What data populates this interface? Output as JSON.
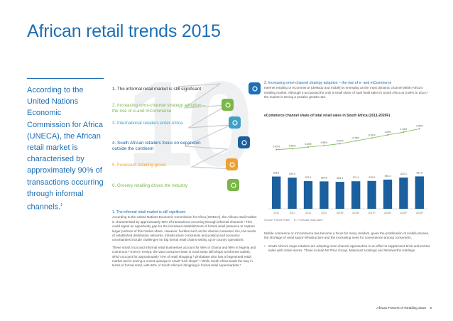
{
  "page": {
    "title": "African retail trends 2015",
    "footer": "African Powers of Retailing 2015",
    "page_number": "5"
  },
  "pull_quote": {
    "text": "According to the United Nations Economic Commission for Africa (UNECA), the African retail market is characterised by approximately 90% of transactions occurring through informal channels.",
    "sup": "1"
  },
  "trends": [
    {
      "label": "1. The informal retail market is still significant",
      "color": "#1d6fb5",
      "icon": "hand-money-icon"
    },
    {
      "label": "2. Increasing omni-channel strategy adoption – the rise of e-and mCommerce",
      "color": "#7ab648",
      "icon": "mobile-shop-icon"
    },
    {
      "label": "3. International retailers enter Africa",
      "color": "#3ea0c4",
      "icon": "globe-icon"
    },
    {
      "label": "4. South African retailers focus on expansion outside the continent",
      "color": "#1a5f9e",
      "icon": "search-africa-icon"
    },
    {
      "label": "5. Forecourt retailing grows",
      "color": "#f0a030",
      "icon": "fuel-icon"
    },
    {
      "label": "6. Grocery retailing drives the industry",
      "color": "#7ab648",
      "icon": "growth-bars-icon"
    }
  ],
  "left_body": {
    "heading": "1. The informal retail market is still significant",
    "paragraphs": [
      "According to the United Nations Economic Commission for Africa (UNECA), the African retail market is characterised by approximately 90% of transactions occurring through informal channels.¹ This could signal an opportunity gap for the increased establishment of formal retail presence to capture larger portions of this market share. However, hurdles such as the diverse consumer mix, low levels of established distribution networks, infrastructure constraints and political and economic uncertainties include challenges for big formal retail chains setting up in-country operations.",
      "These small, local and informal retail businesses account for 96% in Ghana and 98% in Nigeria and Cameroon.² Even in Kenya, the vast consumer base in rural areas still shops at informal outlets, which account for approximately 70% of retail shopping.³ Zimbabwe also has a fragmented retail market and is seeing a recent upsurge in small \"tuck shops\".⁴ While South Africa leads the way in terms of formal retail, with 60% of South Africans shopping in formal retail supermarkets.⁵"
    ]
  },
  "right_body": {
    "heading": "2. Increasing omni-channel strategy adoption – the rise of e- and mCommerce",
    "intro": "Internet retailing or eCommerce (desktop and mobile) is emerging as the most dynamic channel within Africa's retailing market. Although it accounted for only a small share of total retail sales in South Africa at 0.59% in 2014,⁶ the market is seeing a positive growth rate.",
    "bottom_paragraph": "Mobile commerce or mCommerce has become a focus for many retailers, given the proliferation of mobile phones, the shortage of retail space infrastructure and the increasing need for convenience among consumers.",
    "bullet": "South Africa's major retailers are adopting omni-channel approaches in an effort to supplement brick-and-mortar sales with online stores. These include Mr Price Group, Massmart Holdings and Woolworths Holdings."
  },
  "chart_data": {
    "type": "bar",
    "title": "eCommerce channel share of total retail sales in South Africa (2011-2020F)",
    "categories": [
      "2011",
      "2012",
      "2013",
      "2014",
      "2015F",
      "2016F",
      "2017F",
      "2018F",
      "2019F",
      "2020F"
    ],
    "series": [
      {
        "name": "Total retail sales",
        "type": "bar",
        "values": [
          636.1,
          620.9,
          573.1,
          569.6,
          563.1,
          571.4,
          575.8,
          594.3,
          622.3,
          637.8
        ],
        "color": "#1a5f9e"
      },
      {
        "name": "eCommerce share",
        "type": "line",
        "values": [
          0.42,
          0.46,
          0.53,
          0.59,
          0.67,
          0.79,
          0.91,
          1.04,
          1.16,
          1.3
        ],
        "color": "#7ab648"
      }
    ],
    "legend": [
      "Source: Planet Retail",
      "$ = Forecast retail sales"
    ]
  }
}
